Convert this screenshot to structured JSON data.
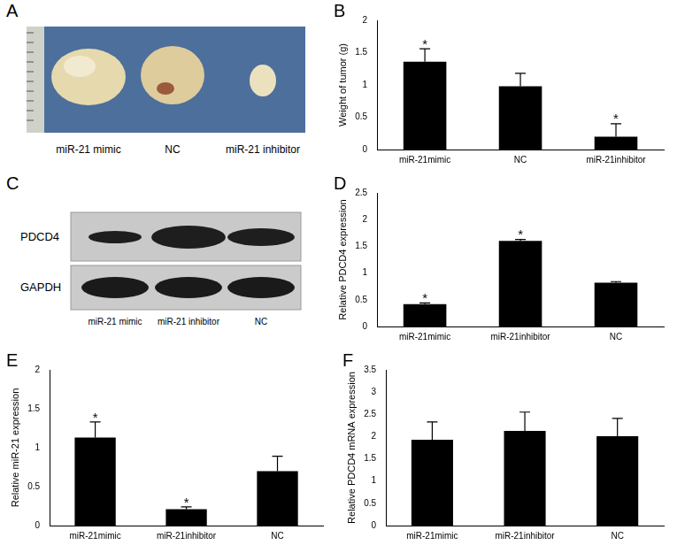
{
  "panel_labels": [
    "A",
    "B",
    "C",
    "D",
    "E",
    "F"
  ],
  "photo": {
    "captions": [
      "miR-21 mimic",
      "NC",
      "miR-21 inhibitor"
    ]
  },
  "blot": {
    "rows": [
      "PDCD4",
      "GAPDH"
    ],
    "lanes": [
      "miR-21 mimic",
      "miR-21 inhibitor",
      "NC"
    ]
  },
  "chart_data": [
    {
      "type": "bar",
      "y_label": "Weight of tumor (g)",
      "categories": [
        "miR-21mimic",
        "NC",
        "miR-21inhibitor"
      ],
      "values": [
        1.36,
        0.98,
        0.2
      ],
      "errors": [
        0.2,
        0.2,
        0.2
      ],
      "annotations": [
        "*",
        null,
        "*"
      ],
      "color": "#000000",
      "ylim": [
        0,
        2
      ],
      "yticks": [
        0,
        0.5,
        1,
        1.5,
        2
      ],
      "grid": false
    },
    {
      "type": "bar",
      "y_label": "Relative PDCD4 expression",
      "categories": [
        "miR-21mimic",
        "miR-21inhibitor",
        "NC"
      ],
      "values": [
        0.42,
        1.6,
        0.82
      ],
      "errors": [
        0.02,
        0.03,
        0.02
      ],
      "annotations": [
        "*",
        "*",
        null
      ],
      "color": "#000000",
      "ylim": [
        0,
        2.5
      ],
      "yticks": [
        0,
        0.5,
        1,
        1.5,
        2,
        2.5
      ],
      "grid": false
    },
    {
      "type": "bar",
      "y_label": "Relative miR-21 expression",
      "categories": [
        "miR-21mimic",
        "miR-21inhibitor",
        "NC"
      ],
      "values": [
        1.13,
        0.21,
        0.7
      ],
      "errors": [
        0.2,
        0.03,
        0.19
      ],
      "annotations": [
        "*",
        "*",
        null
      ],
      "color": "#000000",
      "ylim": [
        0,
        2
      ],
      "yticks": [
        0,
        0.5,
        1,
        1.5,
        2
      ],
      "grid": false
    },
    {
      "type": "bar",
      "y_label": "Relative PDCD4 mRNA expression",
      "categories": [
        "miR-21mimic",
        "miR-21inhibitor",
        "NC"
      ],
      "values": [
        1.93,
        2.13,
        2.01
      ],
      "errors": [
        0.4,
        0.42,
        0.4
      ],
      "annotations": [
        null,
        null,
        null
      ],
      "color": "#000000",
      "ylim": [
        0,
        3.5
      ],
      "yticks": [
        0,
        0.5,
        1,
        1.5,
        2,
        2.5,
        3,
        3.5
      ],
      "grid": false
    }
  ]
}
